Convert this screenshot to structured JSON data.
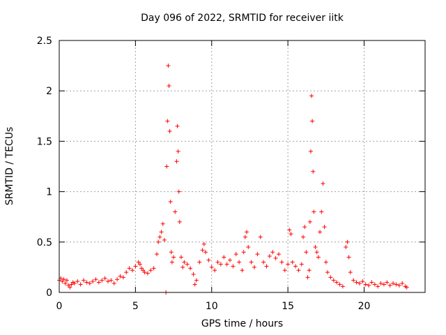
{
  "chart_data": {
    "type": "scatter",
    "title": "Day 096 of 2022, SRMTID for receiver iitk",
    "xlabel": "GPS time / hours",
    "ylabel": "SRMTID / TECUs",
    "xlim": [
      0,
      24
    ],
    "ylim": [
      0,
      2.5
    ],
    "xticks": [
      "0",
      "5",
      "10",
      "15",
      "20"
    ],
    "yticks": [
      "0",
      "0.5",
      "1",
      "1.5",
      "2",
      "2.5"
    ],
    "xtick_values": [
      0,
      5,
      10,
      15,
      20
    ],
    "ytick_values": [
      0,
      0.5,
      1,
      1.5,
      2,
      2.5
    ],
    "grid": true,
    "marker": "plus",
    "color": "#ff0000",
    "series": [
      {
        "name": "SRMTID",
        "points": [
          [
            0.0,
            0.12
          ],
          [
            0.1,
            0.14
          ],
          [
            0.2,
            0.11
          ],
          [
            0.3,
            0.13
          ],
          [
            0.4,
            0.09
          ],
          [
            0.5,
            0.12
          ],
          [
            0.6,
            0.07
          ],
          [
            0.7,
            0.05
          ],
          [
            0.8,
            0.08
          ],
          [
            0.9,
            0.1
          ],
          [
            1.0,
            0.09
          ],
          [
            1.2,
            0.11
          ],
          [
            1.4,
            0.08
          ],
          [
            1.6,
            0.12
          ],
          [
            1.8,
            0.1
          ],
          [
            2.0,
            0.09
          ],
          [
            2.2,
            0.11
          ],
          [
            2.4,
            0.13
          ],
          [
            2.6,
            0.1
          ],
          [
            2.8,
            0.12
          ],
          [
            3.0,
            0.14
          ],
          [
            3.2,
            0.11
          ],
          [
            3.4,
            0.12
          ],
          [
            3.6,
            0.09
          ],
          [
            3.8,
            0.13
          ],
          [
            4.0,
            0.16
          ],
          [
            4.2,
            0.15
          ],
          [
            4.4,
            0.2
          ],
          [
            4.6,
            0.24
          ],
          [
            4.8,
            0.22
          ],
          [
            5.0,
            0.26
          ],
          [
            5.2,
            0.3
          ],
          [
            5.3,
            0.28
          ],
          [
            5.4,
            0.24
          ],
          [
            5.5,
            0.22
          ],
          [
            5.6,
            0.2
          ],
          [
            5.8,
            0.19
          ],
          [
            6.0,
            0.22
          ],
          [
            6.2,
            0.24
          ],
          [
            6.4,
            0.38
          ],
          [
            6.5,
            0.5
          ],
          [
            6.6,
            0.55
          ],
          [
            6.7,
            0.6
          ],
          [
            6.8,
            0.68
          ],
          [
            6.9,
            0.52
          ],
          [
            7.0,
            0.0
          ],
          [
            7.05,
            1.25
          ],
          [
            7.1,
            1.7
          ],
          [
            7.15,
            2.25
          ],
          [
            7.2,
            2.05
          ],
          [
            7.25,
            1.6
          ],
          [
            7.3,
            0.9
          ],
          [
            7.35,
            0.4
          ],
          [
            7.4,
            0.3
          ],
          [
            7.5,
            0.35
          ],
          [
            7.6,
            0.8
          ],
          [
            7.7,
            1.3
          ],
          [
            7.75,
            1.65
          ],
          [
            7.8,
            1.4
          ],
          [
            7.85,
            1.0
          ],
          [
            7.9,
            0.7
          ],
          [
            8.0,
            0.35
          ],
          [
            8.1,
            0.25
          ],
          [
            8.2,
            0.3
          ],
          [
            8.4,
            0.28
          ],
          [
            8.6,
            0.24
          ],
          [
            8.8,
            0.18
          ],
          [
            8.9,
            0.08
          ],
          [
            9.0,
            0.12
          ],
          [
            9.2,
            0.3
          ],
          [
            9.4,
            0.42
          ],
          [
            9.5,
            0.48
          ],
          [
            9.6,
            0.4
          ],
          [
            9.8,
            0.32
          ],
          [
            10.0,
            0.25
          ],
          [
            10.2,
            0.22
          ],
          [
            10.4,
            0.3
          ],
          [
            10.6,
            0.28
          ],
          [
            10.8,
            0.35
          ],
          [
            11.0,
            0.28
          ],
          [
            11.2,
            0.32
          ],
          [
            11.4,
            0.26
          ],
          [
            11.6,
            0.38
          ],
          [
            11.8,
            0.3
          ],
          [
            12.0,
            0.22
          ],
          [
            12.1,
            0.4
          ],
          [
            12.2,
            0.55
          ],
          [
            12.3,
            0.6
          ],
          [
            12.4,
            0.45
          ],
          [
            12.6,
            0.3
          ],
          [
            12.8,
            0.25
          ],
          [
            13.0,
            0.38
          ],
          [
            13.2,
            0.55
          ],
          [
            13.4,
            0.3
          ],
          [
            13.6,
            0.26
          ],
          [
            13.8,
            0.36
          ],
          [
            14.0,
            0.4
          ],
          [
            14.2,
            0.34
          ],
          [
            14.4,
            0.38
          ],
          [
            14.6,
            0.3
          ],
          [
            14.8,
            0.22
          ],
          [
            15.0,
            0.28
          ],
          [
            15.1,
            0.62
          ],
          [
            15.2,
            0.58
          ],
          [
            15.3,
            0.3
          ],
          [
            15.5,
            0.26
          ],
          [
            15.7,
            0.22
          ],
          [
            15.9,
            0.28
          ],
          [
            16.0,
            0.55
          ],
          [
            16.1,
            0.65
          ],
          [
            16.2,
            0.4
          ],
          [
            16.3,
            0.15
          ],
          [
            16.4,
            0.22
          ],
          [
            16.45,
            0.7
          ],
          [
            16.5,
            1.4
          ],
          [
            16.55,
            1.95
          ],
          [
            16.6,
            1.7
          ],
          [
            16.65,
            1.2
          ],
          [
            16.7,
            0.8
          ],
          [
            16.8,
            0.45
          ],
          [
            16.9,
            0.4
          ],
          [
            17.0,
            0.35
          ],
          [
            17.1,
            0.6
          ],
          [
            17.2,
            0.8
          ],
          [
            17.3,
            1.08
          ],
          [
            17.4,
            0.65
          ],
          [
            17.5,
            0.3
          ],
          [
            17.6,
            0.2
          ],
          [
            17.8,
            0.15
          ],
          [
            18.0,
            0.12
          ],
          [
            18.2,
            0.1
          ],
          [
            18.4,
            0.08
          ],
          [
            18.6,
            0.06
          ],
          [
            18.8,
            0.45
          ],
          [
            18.9,
            0.5
          ],
          [
            19.0,
            0.35
          ],
          [
            19.1,
            0.2
          ],
          [
            19.3,
            0.12
          ],
          [
            19.5,
            0.1
          ],
          [
            19.7,
            0.09
          ],
          [
            19.9,
            0.11
          ],
          [
            20.1,
            0.08
          ],
          [
            20.3,
            0.07
          ],
          [
            20.5,
            0.1
          ],
          [
            20.7,
            0.08
          ],
          [
            20.9,
            0.06
          ],
          [
            21.1,
            0.09
          ],
          [
            21.3,
            0.08
          ],
          [
            21.5,
            0.1
          ],
          [
            21.7,
            0.07
          ],
          [
            21.9,
            0.09
          ],
          [
            22.1,
            0.08
          ],
          [
            22.3,
            0.07
          ],
          [
            22.5,
            0.09
          ],
          [
            22.7,
            0.06
          ],
          [
            22.8,
            0.05
          ]
        ]
      }
    ]
  }
}
